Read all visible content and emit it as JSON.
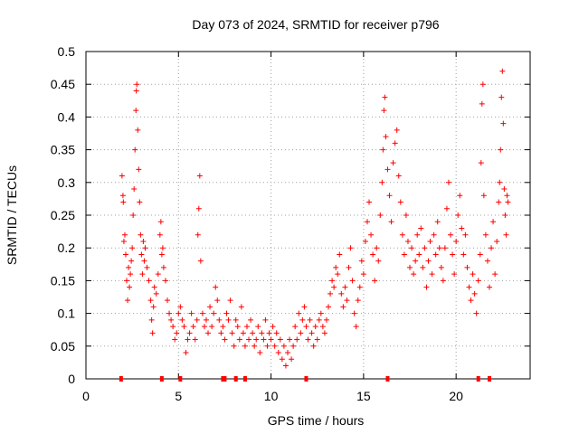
{
  "chart_data": {
    "type": "scatter",
    "title": "Day 073 of 2024, SRMTID for receiver p796",
    "xlabel": "GPS time / hours",
    "ylabel": "SRMTID / TECUs",
    "xlim": [
      0,
      24
    ],
    "ylim": [
      0,
      0.5
    ],
    "xticks": [
      0,
      5,
      10,
      15,
      20
    ],
    "yticks": [
      0,
      0.05,
      0.1,
      0.15,
      0.2,
      0.25,
      0.3,
      0.35,
      0.4,
      0.45,
      0.5
    ],
    "xtick_labels": [
      "0",
      "5",
      "10",
      "15",
      "20"
    ],
    "ytick_labels": [
      "0",
      "0.05",
      "0.1",
      "0.15",
      "0.2",
      "0.25",
      "0.3",
      "0.35",
      "0.4",
      "0.45",
      "0.5"
    ],
    "grid": true,
    "marker": "+",
    "color": "#ff0000",
    "series": [
      {
        "name": "SRMTID",
        "points": [
          [
            1.95,
            0.31
          ],
          [
            2.0,
            0.28
          ],
          [
            2.02,
            0.27
          ],
          [
            2.05,
            0.21
          ],
          [
            2.1,
            0.22
          ],
          [
            2.15,
            0.19
          ],
          [
            2.2,
            0.15
          ],
          [
            2.25,
            0.12
          ],
          [
            2.3,
            0.17
          ],
          [
            2.35,
            0.14
          ],
          [
            2.4,
            0.16
          ],
          [
            2.45,
            0.18
          ],
          [
            2.5,
            0.2
          ],
          [
            2.55,
            0.25
          ],
          [
            2.6,
            0.29
          ],
          [
            2.65,
            0.35
          ],
          [
            2.7,
            0.41
          ],
          [
            2.72,
            0.44
          ],
          [
            2.75,
            0.45
          ],
          [
            2.8,
            0.38
          ],
          [
            2.85,
            0.32
          ],
          [
            2.9,
            0.27
          ],
          [
            2.95,
            0.22
          ],
          [
            3.0,
            0.19
          ],
          [
            3.05,
            0.16
          ],
          [
            3.1,
            0.21
          ],
          [
            3.15,
            0.18
          ],
          [
            3.2,
            0.2
          ],
          [
            3.3,
            0.17
          ],
          [
            3.4,
            0.15
          ],
          [
            3.5,
            0.12
          ],
          [
            3.55,
            0.09
          ],
          [
            3.6,
            0.07
          ],
          [
            3.65,
            0.11
          ],
          [
            3.7,
            0.14
          ],
          [
            3.8,
            0.13
          ],
          [
            3.9,
            0.16
          ],
          [
            4.0,
            0.22
          ],
          [
            4.05,
            0.24
          ],
          [
            4.1,
            0.19
          ],
          [
            4.15,
            0.2
          ],
          [
            4.2,
            0.17
          ],
          [
            4.3,
            0.15
          ],
          [
            4.4,
            0.12
          ],
          [
            4.5,
            0.1
          ],
          [
            4.6,
            0.09
          ],
          [
            4.7,
            0.08
          ],
          [
            4.8,
            0.06
          ],
          [
            4.9,
            0.07
          ],
          [
            5.0,
            0.1
          ],
          [
            5.1,
            0.11
          ],
          [
            5.2,
            0.09
          ],
          [
            5.3,
            0.08
          ],
          [
            5.4,
            0.04
          ],
          [
            5.5,
            0.06
          ],
          [
            5.6,
            0.07
          ],
          [
            5.7,
            0.1
          ],
          [
            5.8,
            0.08
          ],
          [
            5.9,
            0.06
          ],
          [
            6.0,
            0.09
          ],
          [
            6.05,
            0.22
          ],
          [
            6.1,
            0.26
          ],
          [
            6.15,
            0.31
          ],
          [
            6.2,
            0.18
          ],
          [
            6.3,
            0.1
          ],
          [
            6.4,
            0.08
          ],
          [
            6.5,
            0.09
          ],
          [
            6.6,
            0.07
          ],
          [
            6.7,
            0.11
          ],
          [
            6.8,
            0.08
          ],
          [
            6.9,
            0.1
          ],
          [
            7.0,
            0.14
          ],
          [
            7.1,
            0.12
          ],
          [
            7.2,
            0.09
          ],
          [
            7.3,
            0.07
          ],
          [
            7.4,
            0.08
          ],
          [
            7.5,
            0.06
          ],
          [
            7.6,
            0.1
          ],
          [
            7.7,
            0.09
          ],
          [
            7.8,
            0.12
          ],
          [
            7.9,
            0.07
          ],
          [
            8.0,
            0.05
          ],
          [
            8.1,
            0.09
          ],
          [
            8.2,
            0.08
          ],
          [
            8.3,
            0.06
          ],
          [
            8.4,
            0.11
          ],
          [
            8.5,
            0.07
          ],
          [
            8.6,
            0.05
          ],
          [
            8.7,
            0.08
          ],
          [
            8.8,
            0.06
          ],
          [
            8.9,
            0.09
          ],
          [
            9.0,
            0.07
          ],
          [
            9.1,
            0.05
          ],
          [
            9.2,
            0.06
          ],
          [
            9.3,
            0.08
          ],
          [
            9.4,
            0.04
          ],
          [
            9.5,
            0.07
          ],
          [
            9.6,
            0.06
          ],
          [
            9.7,
            0.09
          ],
          [
            9.8,
            0.05
          ],
          [
            9.9,
            0.07
          ],
          [
            10.0,
            0.06
          ],
          [
            10.1,
            0.08
          ],
          [
            10.2,
            0.05
          ],
          [
            10.3,
            0.07
          ],
          [
            10.4,
            0.04
          ],
          [
            10.5,
            0.06
          ],
          [
            10.6,
            0.03
          ],
          [
            10.7,
            0.05
          ],
          [
            10.8,
            0.02
          ],
          [
            10.9,
            0.04
          ],
          [
            11.0,
            0.06
          ],
          [
            11.1,
            0.03
          ],
          [
            11.2,
            0.05
          ],
          [
            11.3,
            0.08
          ],
          [
            11.4,
            0.06
          ],
          [
            11.5,
            0.1
          ],
          [
            11.6,
            0.07
          ],
          [
            11.7,
            0.09
          ],
          [
            11.8,
            0.11
          ],
          [
            11.9,
            0.08
          ],
          [
            12.0,
            0.06
          ],
          [
            12.1,
            0.09
          ],
          [
            12.2,
            0.07
          ],
          [
            12.3,
            0.05
          ],
          [
            12.4,
            0.08
          ],
          [
            12.5,
            0.06
          ],
          [
            12.6,
            0.09
          ],
          [
            12.7,
            0.1
          ],
          [
            12.8,
            0.08
          ],
          [
            12.9,
            0.07
          ],
          [
            13.0,
            0.09
          ],
          [
            13.1,
            0.11
          ],
          [
            13.2,
            0.13
          ],
          [
            13.3,
            0.15
          ],
          [
            13.4,
            0.14
          ],
          [
            13.5,
            0.17
          ],
          [
            13.6,
            0.16
          ],
          [
            13.7,
            0.19
          ],
          [
            13.8,
            0.13
          ],
          [
            13.9,
            0.11
          ],
          [
            14.0,
            0.14
          ],
          [
            14.1,
            0.12
          ],
          [
            14.2,
            0.17
          ],
          [
            14.3,
            0.2
          ],
          [
            14.4,
            0.15
          ],
          [
            14.5,
            0.1
          ],
          [
            14.6,
            0.08
          ],
          [
            14.7,
            0.12
          ],
          [
            14.8,
            0.14
          ],
          [
            14.9,
            0.18
          ],
          [
            15.0,
            0.16
          ],
          [
            15.1,
            0.21
          ],
          [
            15.2,
            0.24
          ],
          [
            15.3,
            0.27
          ],
          [
            15.4,
            0.22
          ],
          [
            15.5,
            0.19
          ],
          [
            15.6,
            0.15
          ],
          [
            15.7,
            0.2
          ],
          [
            15.8,
            0.18
          ],
          [
            15.9,
            0.25
          ],
          [
            16.0,
            0.3
          ],
          [
            16.05,
            0.35
          ],
          [
            16.1,
            0.41
          ],
          [
            16.15,
            0.43
          ],
          [
            16.2,
            0.37
          ],
          [
            16.3,
            0.32
          ],
          [
            16.4,
            0.28
          ],
          [
            16.5,
            0.24
          ],
          [
            16.6,
            0.33
          ],
          [
            16.7,
            0.36
          ],
          [
            16.8,
            0.38
          ],
          [
            16.9,
            0.31
          ],
          [
            17.0,
            0.27
          ],
          [
            17.1,
            0.22
          ],
          [
            17.2,
            0.19
          ],
          [
            17.3,
            0.25
          ],
          [
            17.4,
            0.21
          ],
          [
            17.5,
            0.17
          ],
          [
            17.6,
            0.2
          ],
          [
            17.7,
            0.16
          ],
          [
            17.8,
            0.18
          ],
          [
            17.9,
            0.22
          ],
          [
            18.0,
            0.19
          ],
          [
            18.1,
            0.23
          ],
          [
            18.2,
            0.17
          ],
          [
            18.3,
            0.2
          ],
          [
            18.4,
            0.14
          ],
          [
            18.5,
            0.18
          ],
          [
            18.6,
            0.21
          ],
          [
            18.7,
            0.16
          ],
          [
            18.8,
            0.22
          ],
          [
            18.9,
            0.19
          ],
          [
            19.0,
            0.24
          ],
          [
            19.1,
            0.2
          ],
          [
            19.2,
            0.17
          ],
          [
            19.3,
            0.15
          ],
          [
            19.4,
            0.2
          ],
          [
            19.5,
            0.26
          ],
          [
            19.6,
            0.3
          ],
          [
            19.7,
            0.22
          ],
          [
            19.8,
            0.19
          ],
          [
            19.9,
            0.16
          ],
          [
            20.0,
            0.21
          ],
          [
            20.1,
            0.25
          ],
          [
            20.2,
            0.28
          ],
          [
            20.3,
            0.23
          ],
          [
            20.4,
            0.19
          ],
          [
            20.5,
            0.22
          ],
          [
            20.6,
            0.17
          ],
          [
            20.7,
            0.14
          ],
          [
            20.8,
            0.12
          ],
          [
            20.9,
            0.16
          ],
          [
            21.0,
            0.13
          ],
          [
            21.1,
            0.1
          ],
          [
            21.2,
            0.15
          ],
          [
            21.3,
            0.19
          ],
          [
            21.35,
            0.33
          ],
          [
            21.4,
            0.42
          ],
          [
            21.45,
            0.45
          ],
          [
            21.5,
            0.28
          ],
          [
            21.6,
            0.22
          ],
          [
            21.7,
            0.18
          ],
          [
            21.8,
            0.14
          ],
          [
            21.9,
            0.2
          ],
          [
            22.0,
            0.24
          ],
          [
            22.1,
            0.16
          ],
          [
            22.2,
            0.21
          ],
          [
            22.3,
            0.27
          ],
          [
            22.35,
            0.3
          ],
          [
            22.4,
            0.35
          ],
          [
            22.45,
            0.43
          ],
          [
            22.5,
            0.47
          ],
          [
            22.55,
            0.39
          ],
          [
            22.6,
            0.29
          ],
          [
            22.65,
            0.25
          ],
          [
            22.7,
            0.22
          ],
          [
            22.75,
            0.28
          ],
          [
            22.8,
            0.27
          ]
        ]
      }
    ],
    "gap_markers_x": [
      1.9,
      4.1,
      5.1,
      7.4,
      7.5,
      8.1,
      8.6,
      11.9,
      16.3,
      21.2,
      21.8
    ]
  }
}
